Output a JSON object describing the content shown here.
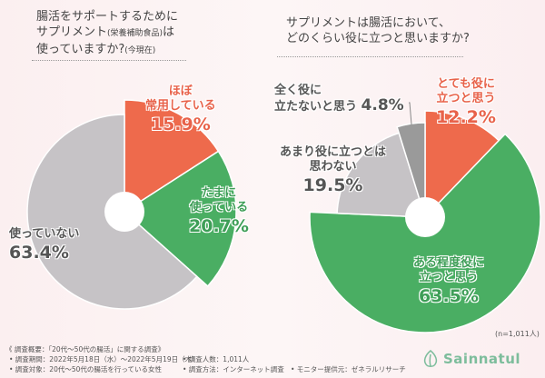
{
  "chart_data": [
    {
      "type": "pie",
      "title": "腸活をサポートするために\nサプリメント(栄養補助食品)は\n使っていますか?(今現在)",
      "categories": [
        "ほぼ常用している",
        "たまに使っている",
        "使っていない"
      ],
      "values": [
        15.9,
        20.7,
        63.4
      ],
      "pct_labels": [
        "15.9%",
        "20.7%",
        "63.4%"
      ],
      "colors": [
        "#ee6a4c",
        "#4aae63",
        "#c6c3c6"
      ]
    },
    {
      "type": "pie",
      "title": "サプリメントは腸活において、\nどのくらい役に立つと思いますか?",
      "categories": [
        "とても役に立つと思う",
        "ある程度役に立つと思う",
        "あまり役に立つとは思わない",
        "全く役に立たないと思う"
      ],
      "values": [
        12.2,
        63.5,
        19.5,
        4.8
      ],
      "pct_labels": [
        "12.2%",
        "63.5%",
        "19.5%",
        "4.8%"
      ],
      "colors": [
        "#ee6a4c",
        "#4aae63",
        "#c6c3c6",
        "#9a9a9a"
      ]
    }
  ],
  "q1": {
    "line1": "腸活をサポートするために",
    "line2": "サプリメント",
    "line2_small": "(栄養補助食品)",
    "line2_end": "は",
    "line3": "使っていますか?",
    "line3_small": "(今現在)"
  },
  "q2": {
    "line1": "サプリメントは腸活において、",
    "line2": "どのくらい役に立つと思いますか?"
  },
  "labels": {
    "l1a": "ほぼ",
    "l1b": "常用している",
    "l2a": "たまに",
    "l2b": "使っている",
    "l3a": "使っていない",
    "r1a": "とても役に",
    "r1b": "立つと思う",
    "r2a": "ある程度役に",
    "r2b": "立つと思う",
    "r3a": "あまり役に立つとは",
    "r3b": "思わない",
    "r4a": "全く役に",
    "r4b": "立たないと思う"
  },
  "n": "(n=1,011人)",
  "footer": {
    "overview": "《 調査概要：「20代〜50代の腸活」に関する調査》",
    "period": "• 調査期間：2022年5月18日（水）〜2022年5月19日（木）",
    "target": "• 調査対象：20代〜50代の腸活を行っている女性",
    "count": "• 調査人数：1,011人",
    "method": "• 調査方法：インターネット調査",
    "provider": "• モニター提供元：ゼネラルリサーチ"
  },
  "logo": "Sainnatul"
}
